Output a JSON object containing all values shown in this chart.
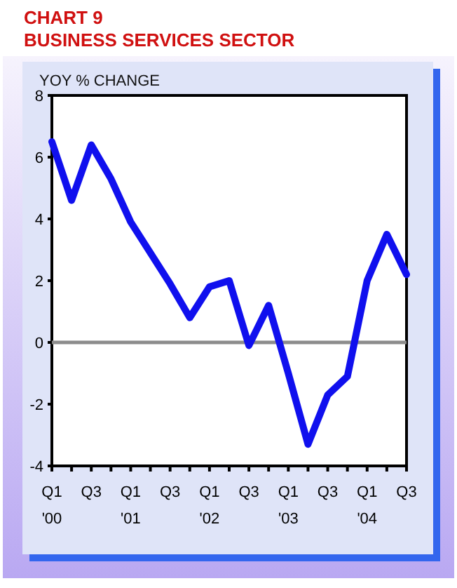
{
  "chart_data": {
    "type": "line",
    "title": "CHART 9",
    "subtitle": "BUSINESS SERVICES SECTOR",
    "ylabel": "YOY % CHANGE",
    "categories": [
      "Q1\n'00",
      null,
      "Q3",
      null,
      "Q1\n'01",
      null,
      "Q3",
      null,
      "Q1\n'02",
      null,
      "Q3",
      null,
      "Q1\n'03",
      null,
      "Q3",
      null,
      "Q1\n'04",
      null,
      "Q3"
    ],
    "series": [
      {
        "color": "#1010ee",
        "values": [
          6.5,
          4.6,
          6.4,
          5.3,
          3.9,
          2.9,
          1.9,
          0.8,
          1.8,
          2.0,
          -0.1,
          1.2,
          -1.0,
          -3.3,
          -1.7,
          -1.1,
          2.0,
          3.5,
          2.2
        ]
      }
    ],
    "ylim": [
      -4,
      8
    ],
    "yticks": [
      -4,
      -2,
      0,
      2,
      4,
      6,
      8
    ],
    "ref_lines": [
      {
        "axis": "y",
        "value": 0,
        "color": "#8c8c8c"
      }
    ],
    "grid": false,
    "marker": "none",
    "line_style": "solid"
  }
}
